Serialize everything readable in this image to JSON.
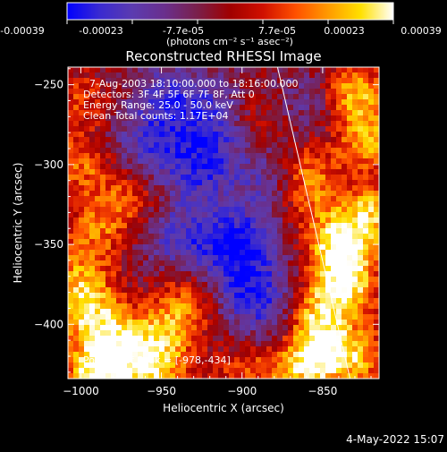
{
  "colorbar": {
    "ticks": [
      "-0.00039",
      "-0.00023",
      "-7.7e-05",
      "7.7e-05",
      "0.00023",
      "0.00039"
    ],
    "units": "(photons cm⁻² s⁻¹ asec⁻²)",
    "gradient": [
      "#0000ff",
      "#3a2ad0",
      "#5b3bb0",
      "#6a2f8c",
      "#7a1f4a",
      "#a00000",
      "#d01000",
      "#ff5000",
      "#ff9a00",
      "#ffe000",
      "#ffffff"
    ]
  },
  "chart_data": {
    "type": "heatmap",
    "title": "Reconstructed RHESSI Image",
    "xlabel": "Heliocentric X (arcsec)",
    "ylabel": "Heliocentric Y (arcsec)",
    "xlim": [
      -1008,
      -815
    ],
    "ylim": [
      -434,
      -239
    ],
    "xticks": [
      -1000,
      -950,
      -900,
      -850
    ],
    "yticks": [
      -250,
      -300,
      -350,
      -400
    ],
    "info_lines": [
      "7-Aug-2003 18:10:00.000 to 18:16:00.000",
      "Detectors: 3F 4F 5F 6F 7F 8F, Att 0",
      "Energy Range: 25.0 - 50.0 keV",
      "Clean    Total counts: 1.17E+04"
    ],
    "peak_label": "Position of Peak = [-978,-434]",
    "limb_line": {
      "start": [
        -878,
        -239
      ],
      "end": [
        -833,
        -434
      ]
    },
    "hotspots": [
      {
        "x": -990,
        "y": -432,
        "i": 1.0
      },
      {
        "x": -955,
        "y": -430,
        "i": 0.8
      },
      {
        "x": -995,
        "y": -395,
        "i": 0.75
      },
      {
        "x": -975,
        "y": -410,
        "i": 0.7
      },
      {
        "x": -1000,
        "y": -370,
        "i": 0.6
      },
      {
        "x": -945,
        "y": -405,
        "i": 0.55
      },
      {
        "x": -935,
        "y": -385,
        "i": 0.45
      },
      {
        "x": -1000,
        "y": -300,
        "i": 0.55
      },
      {
        "x": -990,
        "y": -340,
        "i": 0.5
      },
      {
        "x": -970,
        "y": -320,
        "i": 0.45
      },
      {
        "x": -1000,
        "y": -260,
        "i": 0.4
      },
      {
        "x": -830,
        "y": -255,
        "i": 0.75
      },
      {
        "x": -822,
        "y": -285,
        "i": 0.7
      },
      {
        "x": -840,
        "y": -350,
        "i": 0.95
      },
      {
        "x": -835,
        "y": -375,
        "i": 0.9
      },
      {
        "x": -850,
        "y": -420,
        "i": 0.85
      },
      {
        "x": -855,
        "y": -395,
        "i": 0.8
      },
      {
        "x": -820,
        "y": -330,
        "i": 0.75
      },
      {
        "x": -825,
        "y": -420,
        "i": 0.6
      },
      {
        "x": -870,
        "y": -430,
        "i": 0.55
      },
      {
        "x": -900,
        "y": -430,
        "i": 0.4
      },
      {
        "x": -890,
        "y": -270,
        "i": 0.35
      },
      {
        "x": -860,
        "y": -300,
        "i": 0.45
      },
      {
        "x": -860,
        "y": -320,
        "i": 0.5
      }
    ],
    "coldspots": [
      {
        "x": -905,
        "y": -350,
        "i": 0.95
      },
      {
        "x": -925,
        "y": -300,
        "i": 0.75
      },
      {
        "x": -945,
        "y": -260,
        "i": 0.6
      },
      {
        "x": -960,
        "y": -290,
        "i": 0.55
      },
      {
        "x": -895,
        "y": -380,
        "i": 0.7
      },
      {
        "x": -915,
        "y": -270,
        "i": 0.55
      },
      {
        "x": -880,
        "y": -310,
        "i": 0.5
      },
      {
        "x": -940,
        "y": -345,
        "i": 0.55
      },
      {
        "x": -860,
        "y": -265,
        "i": 0.35
      },
      {
        "x": -875,
        "y": -395,
        "i": 0.4
      }
    ]
  },
  "footer": {
    "date": "4-May-2022 15:07"
  }
}
